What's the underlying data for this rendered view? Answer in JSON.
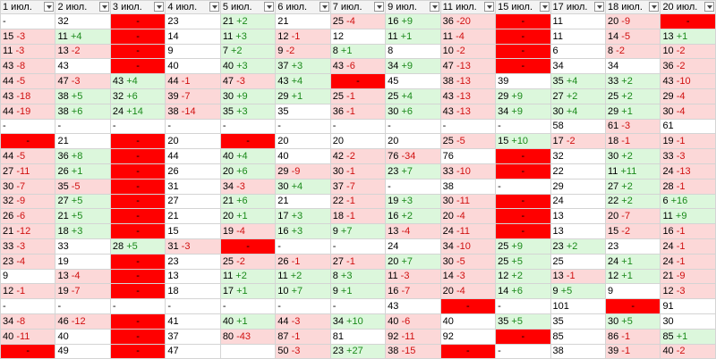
{
  "table": {
    "headers": [
      "1 июл.",
      "2 июл.",
      "3 июл.",
      "4 июл.",
      "5 июл.",
      "6 июл.",
      "7 июл.",
      "9 июл.",
      "11 июл.",
      "15 июл.",
      "17 июл.",
      "18 июл.",
      "20 июл."
    ],
    "rows": [
      [
        "-",
        "32",
        {
          "t": "-",
          "fill": "#ff0000"
        },
        "23",
        [
          "21",
          "+2"
        ],
        "21",
        [
          "25",
          "-4"
        ],
        [
          "16",
          "+9"
        ],
        [
          "36",
          "-20"
        ],
        {
          "t": "-",
          "fill": "#ff0000"
        },
        "11",
        [
          "20",
          "-9"
        ],
        {
          "t": "-",
          "fill": "#ff0000"
        }
      ],
      [
        [
          "15",
          "-3"
        ],
        [
          "11",
          "+4"
        ],
        {
          "t": "-",
          "fill": "#ff0000"
        },
        "14",
        [
          "11",
          "+3"
        ],
        [
          "12",
          "-1"
        ],
        "12",
        [
          "11",
          "+1"
        ],
        [
          "11",
          "-4"
        ],
        {
          "t": "-",
          "fill": "#ff0000"
        },
        "11",
        [
          "14",
          "-5"
        ],
        [
          "13",
          "+1"
        ]
      ],
      [
        [
          "11",
          "-3"
        ],
        [
          "13",
          "-2"
        ],
        {
          "t": "-",
          "fill": "#ff0000"
        },
        "9",
        [
          "7",
          "+2"
        ],
        [
          "9",
          "-2"
        ],
        [
          "8",
          "+1"
        ],
        "8",
        [
          "10",
          "-2"
        ],
        {
          "t": "-",
          "fill": "#ff0000"
        },
        "6",
        [
          "8",
          "-2"
        ],
        [
          "10",
          "-2"
        ]
      ],
      [
        [
          "43",
          "-8"
        ],
        "43",
        {
          "t": "-",
          "fill": "#ff0000"
        },
        "40",
        [
          "40",
          "+3"
        ],
        [
          "37",
          "+3"
        ],
        [
          "43",
          "-6"
        ],
        [
          "34",
          "+9"
        ],
        [
          "47",
          "-13"
        ],
        {
          "t": "-",
          "fill": "#ff0000"
        },
        "34",
        "34",
        [
          "36",
          "-2"
        ]
      ],
      [
        [
          "44",
          "-5"
        ],
        [
          "47",
          "-3"
        ],
        [
          "43",
          "+4"
        ],
        [
          "44",
          "-1"
        ],
        [
          "47",
          "-3"
        ],
        [
          "43",
          "+4"
        ],
        {
          "t": "-",
          "fill": "#ff0000"
        },
        "45",
        [
          "38",
          "-13"
        ],
        "39",
        [
          "35",
          "+4"
        ],
        [
          "33",
          "+2"
        ],
        [
          "43",
          "-10"
        ]
      ],
      [
        [
          "43",
          "-18"
        ],
        [
          "38",
          "+5"
        ],
        [
          "32",
          "+6"
        ],
        [
          "39",
          "-7"
        ],
        [
          "30",
          "+9"
        ],
        [
          "29",
          "+1"
        ],
        [
          "25",
          "-1"
        ],
        [
          "25",
          "+4"
        ],
        [
          "43",
          "-13"
        ],
        [
          "29",
          "+9"
        ],
        [
          "27",
          "+2"
        ],
        [
          "25",
          "+2"
        ],
        [
          "29",
          "-4"
        ]
      ],
      [
        [
          "44",
          "-19"
        ],
        [
          "38",
          "+6"
        ],
        [
          "24",
          "+14"
        ],
        [
          "38",
          "-14"
        ],
        [
          "35",
          "+3"
        ],
        "35",
        [
          "36",
          "-1"
        ],
        [
          "30",
          "+6"
        ],
        [
          "43",
          "-13"
        ],
        [
          "34",
          "+9"
        ],
        [
          "30",
          "+4"
        ],
        [
          "29",
          "+1"
        ],
        [
          "30",
          "-4"
        ]
      ],
      [
        "-",
        "-",
        "-",
        "-",
        "-",
        "-",
        "-",
        "-",
        "-",
        "-",
        "58",
        [
          "61",
          "-3"
        ],
        "61"
      ],
      [
        {
          "t": "-",
          "fill": "#ff0000"
        },
        "21",
        {
          "t": "-",
          "fill": "#ff0000"
        },
        "20",
        {
          "t": "-",
          "fill": "#ff0000"
        },
        "20",
        "20",
        "20",
        [
          "25",
          "-5"
        ],
        [
          "15",
          "+10"
        ],
        [
          "17",
          "-2"
        ],
        [
          "18",
          "-1"
        ],
        [
          "19",
          "-1"
        ]
      ],
      [
        [
          "44",
          "-5"
        ],
        [
          "36",
          "+8"
        ],
        {
          "t": "-",
          "fill": "#ff0000"
        },
        "44",
        [
          "40",
          "+4"
        ],
        "40",
        [
          "42",
          "-2"
        ],
        [
          "76",
          "-34"
        ],
        "76",
        {
          "t": "-",
          "fill": "#ff0000"
        },
        "32",
        [
          "30",
          "+2"
        ],
        [
          "33",
          "-3"
        ]
      ],
      [
        [
          "27",
          "-11"
        ],
        [
          "26",
          "+1"
        ],
        {
          "t": "-",
          "fill": "#ff0000"
        },
        "26",
        [
          "20",
          "+6"
        ],
        [
          "29",
          "-9"
        ],
        [
          "30",
          "-1"
        ],
        [
          "23",
          "+7"
        ],
        [
          "33",
          "-10"
        ],
        {
          "t": "-",
          "fill": "#ff0000"
        },
        "22",
        [
          "11",
          "+11"
        ],
        [
          "24",
          "-13"
        ]
      ],
      [
        [
          "30",
          "-7"
        ],
        [
          "35",
          "-5"
        ],
        {
          "t": "-",
          "fill": "#ff0000"
        },
        "31",
        [
          "34",
          "-3"
        ],
        [
          "30",
          "+4"
        ],
        [
          "37",
          "-7"
        ],
        "-",
        "38",
        "-",
        "29",
        [
          "27",
          "+2"
        ],
        [
          "28",
          "-1"
        ]
      ],
      [
        [
          "32",
          "-9"
        ],
        [
          "27",
          "+5"
        ],
        {
          "t": "-",
          "fill": "#ff0000"
        },
        "27",
        [
          "21",
          "+6"
        ],
        "21",
        [
          "22",
          "-1"
        ],
        [
          "19",
          "+3"
        ],
        [
          "30",
          "-11"
        ],
        {
          "t": "-",
          "fill": "#ff0000"
        },
        "24",
        [
          "22",
          "+2"
        ],
        [
          "6",
          "+16"
        ]
      ],
      [
        [
          "26",
          "-6"
        ],
        [
          "21",
          "+5"
        ],
        {
          "t": "-",
          "fill": "#ff0000"
        },
        "21",
        [
          "20",
          "+1"
        ],
        [
          "17",
          "+3"
        ],
        [
          "18",
          "-1"
        ],
        [
          "16",
          "+2"
        ],
        [
          "20",
          "-4"
        ],
        {
          "t": "-",
          "fill": "#ff0000"
        },
        "13",
        [
          "20",
          "-7"
        ],
        [
          "11",
          "+9"
        ]
      ],
      [
        [
          "21",
          "-12"
        ],
        [
          "18",
          "+3"
        ],
        {
          "t": "-",
          "fill": "#ff0000"
        },
        "15",
        [
          "19",
          "-4"
        ],
        [
          "16",
          "+3"
        ],
        [
          "9",
          "+7"
        ],
        [
          "13",
          "-4"
        ],
        [
          "24",
          "-11"
        ],
        {
          "t": "-",
          "fill": "#ff0000"
        },
        "13",
        [
          "15",
          "-2"
        ],
        [
          "16",
          "-1"
        ]
      ],
      [
        [
          "33",
          "-3"
        ],
        "33",
        [
          "28",
          "+5"
        ],
        [
          "31",
          "-3"
        ],
        {
          "t": "-",
          "fill": "#ff0000"
        },
        "-",
        "-",
        "24",
        [
          "34",
          "-10"
        ],
        [
          "25",
          "+9"
        ],
        [
          "23",
          "+2"
        ],
        "23",
        [
          "24",
          "-1"
        ]
      ],
      [
        [
          "23",
          "-4"
        ],
        "19",
        {
          "t": "-",
          "fill": "#ff0000"
        },
        "23",
        [
          "25",
          "-2"
        ],
        [
          "26",
          "-1"
        ],
        [
          "27",
          "-1"
        ],
        [
          "20",
          "+7"
        ],
        [
          "30",
          "-5"
        ],
        [
          "25",
          "+5"
        ],
        "25",
        [
          "24",
          "+1"
        ],
        [
          "24",
          "-1"
        ]
      ],
      [
        "9",
        [
          "13",
          "-4"
        ],
        {
          "t": "-",
          "fill": "#ff0000"
        },
        "13",
        [
          "11",
          "+2"
        ],
        [
          "11",
          "+2"
        ],
        [
          "8",
          "+3"
        ],
        [
          "11",
          "-3"
        ],
        [
          "14",
          "-3"
        ],
        [
          "12",
          "+2"
        ],
        [
          "13",
          "-1"
        ],
        [
          "12",
          "+1"
        ],
        [
          "21",
          "-9"
        ]
      ],
      [
        [
          "12",
          "-1"
        ],
        [
          "19",
          "-7"
        ],
        {
          "t": "-",
          "fill": "#ff0000"
        },
        "18",
        [
          "17",
          "+1"
        ],
        [
          "10",
          "+7"
        ],
        [
          "9",
          "+1"
        ],
        [
          "16",
          "-7"
        ],
        [
          "20",
          "-4"
        ],
        [
          "14",
          "+6"
        ],
        [
          "9",
          "+5"
        ],
        "9",
        [
          "12",
          "-3"
        ]
      ],
      [
        "-",
        "-",
        "-",
        "-",
        "-",
        "-",
        "-",
        "43",
        {
          "t": "-",
          "fill": "#ff0000"
        },
        "-",
        "101",
        {
          "t": "-",
          "fill": "#ff0000"
        },
        "91"
      ],
      [
        [
          "34",
          "-8"
        ],
        [
          "46",
          "-12"
        ],
        {
          "t": "-",
          "fill": "#ff0000"
        },
        "41",
        [
          "40",
          "+1"
        ],
        [
          "44",
          "-3"
        ],
        [
          "34",
          "+10"
        ],
        [
          "40",
          "-6"
        ],
        "40",
        [
          "35",
          "+5"
        ],
        "35",
        [
          "30",
          "+5"
        ],
        "30"
      ],
      [
        [
          "40",
          "-11"
        ],
        "40",
        {
          "t": "-",
          "fill": "#ff0000"
        },
        "37",
        [
          "80",
          "-43"
        ],
        [
          "87",
          "-1"
        ],
        "81",
        [
          "92",
          "-11"
        ],
        "92",
        {
          "t": "-",
          "fill": "#ff0000"
        },
        "85",
        [
          "86",
          "-1"
        ],
        [
          "85",
          "+1"
        ]
      ],
      [
        {
          "t": "-",
          "fill": "#ff0000"
        },
        "49",
        {
          "t": "-",
          "fill": "#ff0000"
        },
        "47",
        null,
        [
          "50",
          "-3"
        ],
        [
          "23",
          "+27"
        ],
        [
          "38",
          "-15"
        ],
        {
          "t": "-",
          "fill": "#ff0000"
        },
        "-",
        "38",
        [
          "39",
          "-1"
        ],
        [
          "40",
          "-2"
        ]
      ]
    ]
  }
}
